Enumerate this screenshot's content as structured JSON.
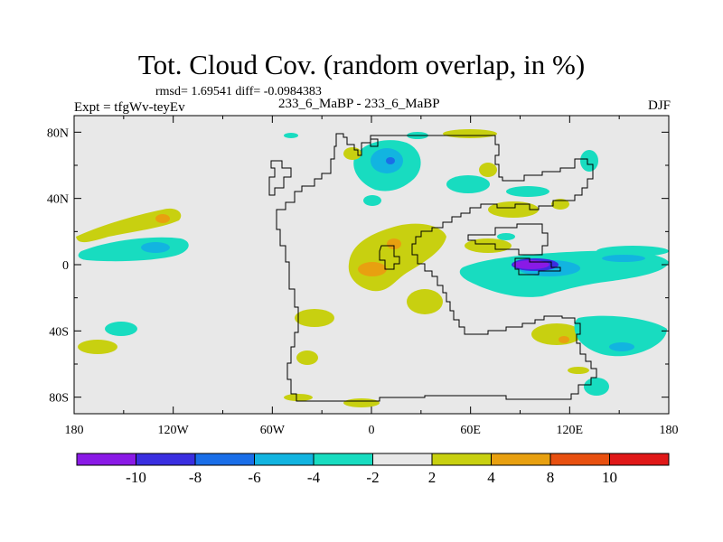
{
  "chart_data": {
    "type": "filled-contour-map",
    "title": "Tot. Cloud Cov. (random overlap, in %)",
    "stats_text": "rmsd= 1.69541 diff= -0.0984383",
    "left_label": "Expt = tfgWv-teyEv",
    "center_label": "233_6_MaBP - 233_6_MaBP",
    "right_label": "DJF",
    "x_ticks": [
      "180",
      "120W",
      "60W",
      "0",
      "60E",
      "120E",
      "180"
    ],
    "y_ticks": [
      "80N",
      "40N",
      "0",
      "40S",
      "80S"
    ],
    "x_values": [
      -180,
      -120,
      -60,
      0,
      60,
      120,
      180
    ],
    "y_values": [
      80,
      40,
      0,
      -40,
      -80
    ],
    "xlim": [
      -180,
      180
    ],
    "ylim": [
      -90,
      90
    ],
    "colorbar": {
      "labels": [
        "-10",
        "-8",
        "-6",
        "-4",
        "-2",
        "2",
        "4",
        "8",
        "10"
      ],
      "colors": [
        "#8a1ae6",
        "#3a2ee0",
        "#1a6ee8",
        "#12b4e0",
        "#18dcc0",
        "#e8e8e8",
        "#c8d010",
        "#e8a010",
        "#e85010",
        "#e01818"
      ]
    },
    "background_color": "#e8e8e8",
    "features": [
      {
        "name": "north-pacific-positive-band",
        "level": "4",
        "lon": -145,
        "lat": 25
      },
      {
        "name": "north-pacific-positive-core",
        "level": "8",
        "lon": -137,
        "lat": 28
      },
      {
        "name": "north-pacific-negative-band",
        "level": "-4",
        "lon": -140,
        "lat": 12
      },
      {
        "name": "north-pacific-negative-core",
        "level": "-6",
        "lon": -132,
        "lat": 10
      },
      {
        "name": "arctic-negative-blob",
        "level": "-4",
        "lon": 8,
        "lat": 64
      },
      {
        "name": "arctic-negative-core",
        "level": "-6",
        "lon": 10,
        "lat": 66
      },
      {
        "name": "central-africa-positive",
        "level": "4",
        "lon": 20,
        "lat": 15
      },
      {
        "name": "central-africa-positive-core-1",
        "level": "8",
        "lon": 0,
        "lat": 0
      },
      {
        "name": "central-africa-positive-core-2",
        "level": "8",
        "lon": 12,
        "lat": 12
      },
      {
        "name": "indian-ocean-negative-band",
        "level": "-4",
        "lon": 130,
        "lat": -5
      },
      {
        "name": "indian-ocean-strong-negative",
        "level": "-10",
        "lon": 100,
        "lat": 1
      },
      {
        "name": "south-indian-positive",
        "level": "4",
        "lon": 120,
        "lat": -42
      },
      {
        "name": "south-indian-positive-core",
        "level": "8",
        "lon": 122,
        "lat": -44
      },
      {
        "name": "southeast-negative-band",
        "level": "-4",
        "lon": 150,
        "lat": -45
      }
    ]
  }
}
